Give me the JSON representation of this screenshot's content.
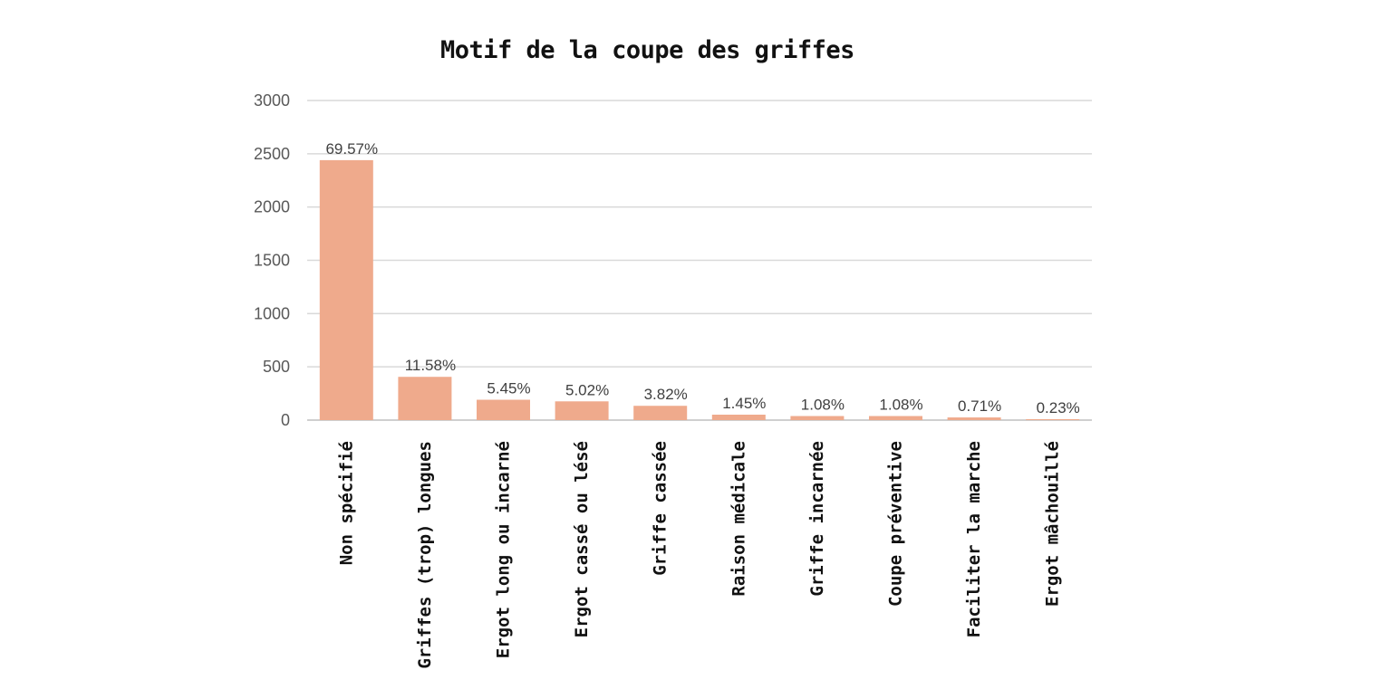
{
  "chart_data": {
    "type": "bar",
    "title": "Motif de la coupe des griffes",
    "xlabel": "",
    "ylabel": "",
    "ylim": [
      0,
      3000
    ],
    "yticks": [
      0,
      500,
      1000,
      1500,
      2000,
      2500,
      3000
    ],
    "grid": true,
    "legend": "none",
    "categories": [
      "Non spécifié",
      "Griffes (trop) longues",
      "Ergot long ou incarné",
      "Ergot cassé ou lésé",
      "Griffe cassée",
      "Raison médicale",
      "Griffe incarnée",
      "Coupe préventive",
      "Faciliter la marche",
      "Ergot mâchouillé"
    ],
    "values": [
      2440,
      406,
      191,
      176,
      134,
      51,
      38,
      38,
      25,
      8
    ],
    "data_labels": [
      "69.57%",
      "11.58%",
      "5.45%",
      "5.02%",
      "3.82%",
      "1.45%",
      "1.08%",
      "1.08%",
      "0.71%",
      "0.23%"
    ],
    "colors": {
      "bar": "#EFAA8C",
      "grid": "#D9D9D9",
      "axis": "#BFBFBF"
    }
  }
}
